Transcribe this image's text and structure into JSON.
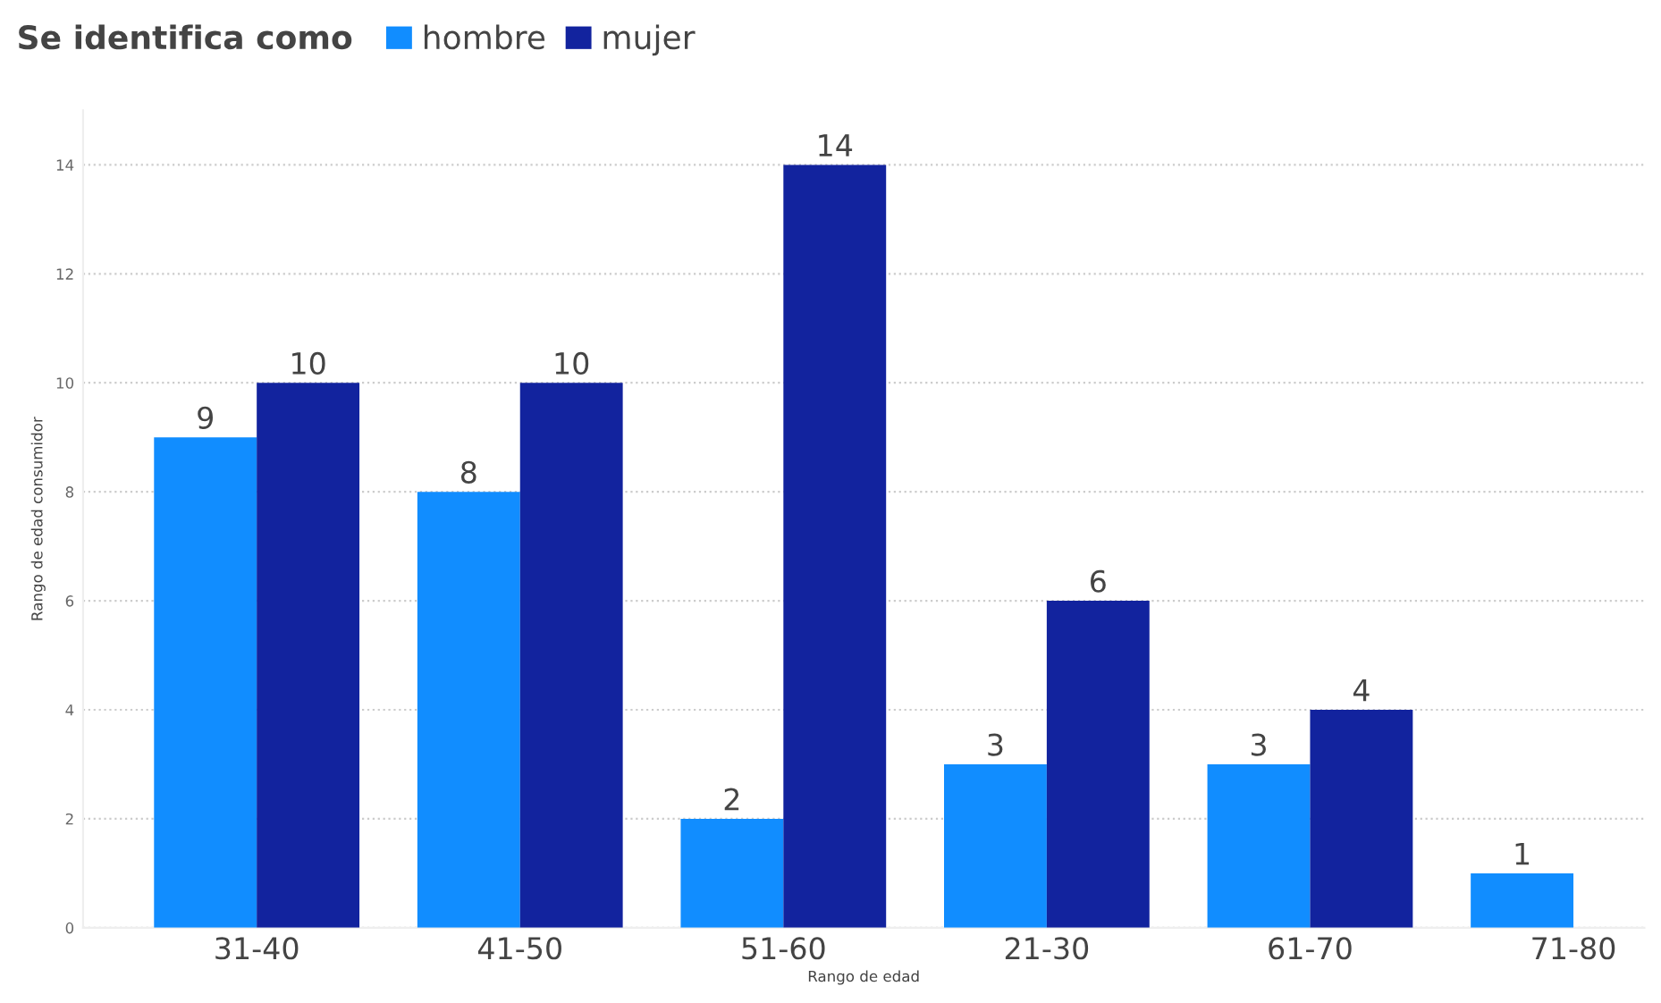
{
  "chart_data": {
    "type": "bar",
    "legend_title": "Se identifica como",
    "xlabel": "Rango de edad",
    "ylabel": "Rango de edad consumidor",
    "categories": [
      "31-40",
      "41-50",
      "51-60",
      "21-30",
      "61-70",
      "71-80"
    ],
    "series": [
      {
        "name": "hombre",
        "color": "#118dff",
        "values": [
          9,
          8,
          2,
          3,
          3,
          1
        ]
      },
      {
        "name": "mujer",
        "color": "#12239e",
        "values": [
          10,
          10,
          14,
          6,
          4,
          null
        ]
      }
    ],
    "ylim": [
      0,
      15
    ],
    "yticks": [
      0,
      2,
      4,
      6,
      8,
      10,
      12,
      14
    ],
    "grid": "y",
    "legend": "top left",
    "data_labels": true
  }
}
